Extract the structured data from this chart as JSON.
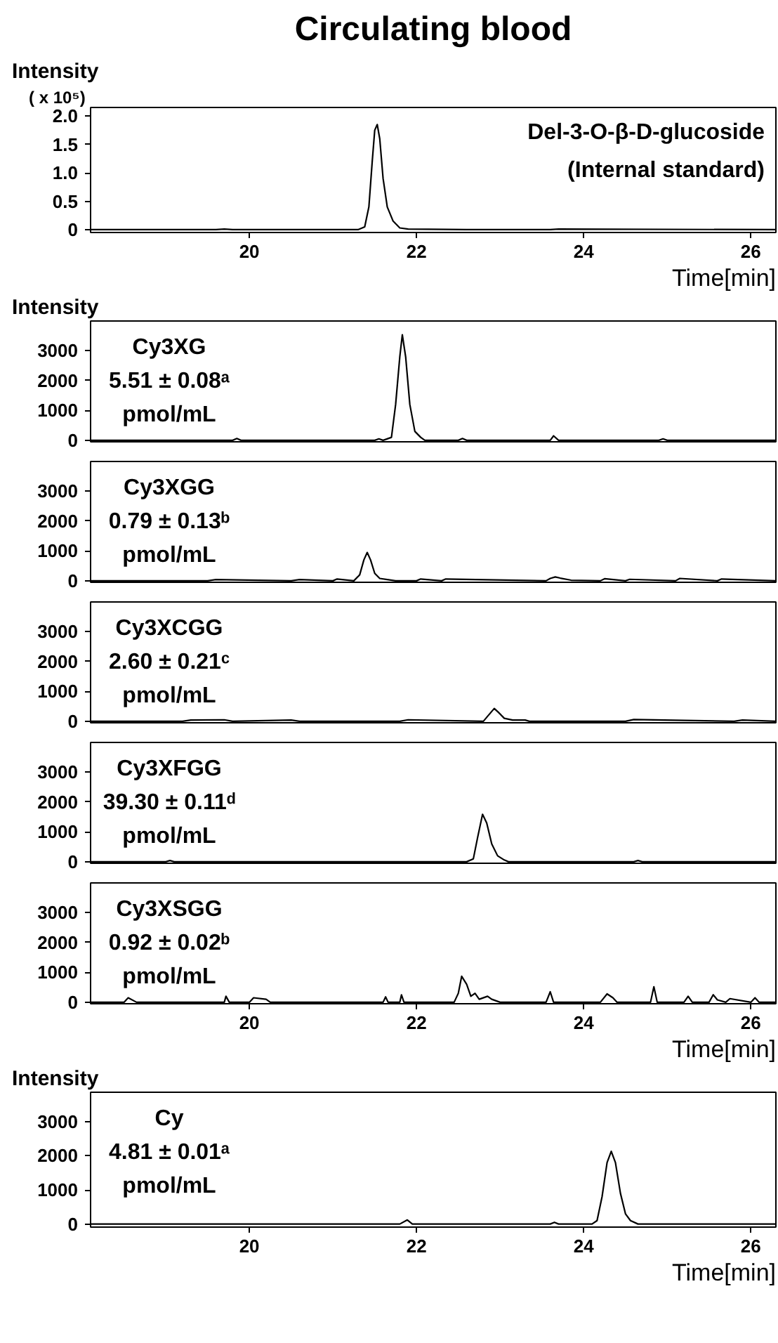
{
  "chart_data": [
    {
      "type": "line",
      "title": "Circulating blood",
      "ylabel": "Intensity",
      "subtitle": "( x 10⁵)",
      "xlabel": "Time[min]",
      "annotations": [
        "Del-3-O-β-D-glucoside",
        "(Internal standard)"
      ],
      "color": "#000000",
      "xlim": [
        18.1,
        26.3
      ],
      "xticks": [
        20,
        22,
        24,
        26
      ],
      "ylim": [
        -0.05,
        2.15
      ],
      "yticks": [
        0,
        0.5,
        {
          "value": 1.0,
          "label": "1.0"
        },
        1.5,
        {
          "value": 2.0,
          "label": "2.0"
        }
      ],
      "x": [
        18.1,
        19.6,
        19.7,
        19.8,
        21.3,
        21.38,
        21.43,
        21.47,
        21.5,
        21.53,
        21.56,
        21.6,
        21.65,
        21.72,
        21.8,
        21.9,
        22.6,
        23.6,
        23.7,
        26.3
      ],
      "values": [
        0,
        0,
        0.01,
        0,
        0,
        0.05,
        0.4,
        1.2,
        1.75,
        1.85,
        1.6,
        0.9,
        0.4,
        0.15,
        0.03,
        0.01,
        0,
        0,
        0.01,
        0
      ]
    },
    {
      "type": "line",
      "ylabel": "Intensity",
      "annotations": [
        "Cy3XG",
        "5.51 ± 0.08ᵃ",
        "pmol/mL"
      ],
      "color": "#000000",
      "xlim": [
        18.1,
        26.3
      ],
      "xticks": [
        20,
        22,
        24,
        26
      ],
      "ylim": [
        -50,
        4000
      ],
      "yticks": [
        0,
        1000,
        2000,
        3000
      ],
      "tick_labels": "y",
      "x": [
        18.1,
        19.8,
        19.85,
        19.9,
        21.5,
        21.55,
        21.6,
        21.7,
        21.75,
        21.8,
        21.83,
        21.87,
        21.92,
        21.98,
        22.05,
        22.1,
        22.5,
        22.55,
        22.6,
        23.6,
        23.64,
        23.7,
        24.0,
        24.9,
        24.95,
        25.0,
        26.3
      ],
      "values": [
        0,
        0,
        60,
        0,
        0,
        50,
        0,
        100,
        1200,
        2800,
        3540,
        2800,
        1200,
        300,
        100,
        0,
        0,
        60,
        0,
        0,
        150,
        0,
        0,
        0,
        50,
        0,
        0
      ]
    },
    {
      "type": "line",
      "annotations": [
        "Cy3XGG",
        "0.79 ± 0.13ᵇ",
        "pmol/mL"
      ],
      "color": "#000000",
      "xlim": [
        18.1,
        26.3
      ],
      "xticks": [
        20,
        22,
        24,
        26
      ],
      "ylim": [
        -50,
        4000
      ],
      "yticks": [
        0,
        1000,
        2000,
        3000
      ],
      "tick_labels": "y",
      "x": [
        18.1,
        19.5,
        19.6,
        20.5,
        20.6,
        21.0,
        21.05,
        21.25,
        21.32,
        21.37,
        21.41,
        21.45,
        21.5,
        21.56,
        21.65,
        21.75,
        22.0,
        22.05,
        22.3,
        22.35,
        23.55,
        23.6,
        23.66,
        23.72,
        23.85,
        24.2,
        24.25,
        24.5,
        24.55,
        25.1,
        25.15,
        25.6,
        25.65,
        26.3
      ],
      "values": [
        0,
        0,
        40,
        0,
        40,
        0,
        60,
        0,
        200,
        700,
        950,
        700,
        250,
        80,
        40,
        0,
        0,
        60,
        0,
        60,
        0,
        80,
        130,
        90,
        20,
        0,
        70,
        0,
        50,
        0,
        80,
        0,
        60,
        0
      ]
    },
    {
      "type": "line",
      "annotations": [
        "Cy3XCGG",
        "2.60 ± 0.21ᶜ",
        "pmol/mL"
      ],
      "color": "#000000",
      "xlim": [
        18.1,
        26.3
      ],
      "xticks": [
        20,
        22,
        24,
        26
      ],
      "ylim": [
        -50,
        4000
      ],
      "yticks": [
        0,
        1000,
        2000,
        3000
      ],
      "tick_labels": "y",
      "x": [
        18.1,
        19.2,
        19.3,
        19.7,
        19.8,
        20.5,
        20.6,
        21.8,
        21.9,
        22.8,
        22.86,
        22.93,
        22.98,
        23.05,
        23.15,
        23.3,
        23.35,
        24.5,
        24.6,
        25.8,
        25.9,
        26.3
      ],
      "values": [
        0,
        0,
        40,
        50,
        0,
        40,
        0,
        0,
        50,
        0,
        200,
        430,
        300,
        100,
        40,
        40,
        0,
        0,
        60,
        0,
        40,
        0
      ]
    },
    {
      "type": "line",
      "annotations": [
        "Cy3XFGG",
        "39.30 ± 0.11ᵈ",
        "pmol/mL"
      ],
      "color": "#000000",
      "xlim": [
        18.1,
        26.3
      ],
      "xticks": [
        20,
        22,
        24,
        26
      ],
      "ylim": [
        -50,
        4000
      ],
      "yticks": [
        0,
        1000,
        2000,
        3000
      ],
      "tick_labels": "y",
      "x": [
        18.1,
        19.0,
        19.05,
        19.1,
        22.6,
        22.68,
        22.73,
        22.79,
        22.84,
        22.9,
        22.97,
        23.05,
        23.1,
        24.6,
        24.65,
        24.7,
        26.3
      ],
      "values": [
        0,
        0,
        40,
        0,
        0,
        100,
        800,
        1590,
        1300,
        600,
        200,
        60,
        0,
        0,
        40,
        0,
        0
      ]
    },
    {
      "type": "line",
      "xlabel": "Time[min]",
      "annotations": [
        "Cy3XSGG",
        "0.92 ± 0.02ᵇ",
        "pmol/mL"
      ],
      "color": "#000000",
      "xlim": [
        18.1,
        26.3
      ],
      "xticks": [
        20,
        22,
        24,
        26
      ],
      "ylim": [
        -50,
        4000
      ],
      "yticks": [
        0,
        1000,
        2000,
        3000
      ],
      "x": [
        18.1,
        18.5,
        18.55,
        18.65,
        19.7,
        19.72,
        19.76,
        20.0,
        20.05,
        20.2,
        20.25,
        21.6,
        21.63,
        21.66,
        21.8,
        21.82,
        21.85,
        22.45,
        22.5,
        22.54,
        22.6,
        22.65,
        22.7,
        22.75,
        22.85,
        22.9,
        23.0,
        23.55,
        23.6,
        23.64,
        23.9,
        24.2,
        24.28,
        24.35,
        24.4,
        24.8,
        24.84,
        24.88,
        25.0,
        25.2,
        25.25,
        25.3,
        25.5,
        25.55,
        25.6,
        25.7,
        25.75,
        26.0,
        26.05,
        26.1,
        26.3
      ],
      "values": [
        0,
        0,
        150,
        0,
        0,
        200,
        0,
        0,
        150,
        100,
        0,
        0,
        180,
        0,
        0,
        250,
        0,
        0,
        300,
        870,
        600,
        200,
        300,
        100,
        200,
        100,
        0,
        0,
        350,
        0,
        0,
        0,
        280,
        150,
        0,
        0,
        520,
        0,
        0,
        0,
        200,
        0,
        0,
        250,
        80,
        0,
        120,
        0,
        150,
        0,
        0
      ]
    },
    {
      "type": "line",
      "ylabel": "Intensity",
      "xlabel": "Time[min]",
      "annotations": [
        "Cy",
        "4.81 ± 0.01ᵃ",
        "pmol/mL"
      ],
      "color": "#000000",
      "xlim": [
        18.1,
        26.3
      ],
      "xticks": [
        20,
        22,
        24,
        26
      ],
      "ylim": [
        -90,
        3860
      ],
      "yticks": [
        0,
        1000,
        2000,
        3000
      ],
      "x": [
        18.1,
        21.8,
        21.89,
        21.95,
        23.6,
        23.65,
        23.7,
        24.1,
        24.16,
        24.22,
        24.28,
        24.33,
        24.38,
        24.44,
        24.5,
        24.56,
        24.65,
        26.3
      ],
      "values": [
        0,
        0,
        120,
        0,
        0,
        50,
        0,
        0,
        100,
        800,
        1800,
        2130,
        1800,
        900,
        300,
        100,
        0,
        0
      ]
    }
  ]
}
